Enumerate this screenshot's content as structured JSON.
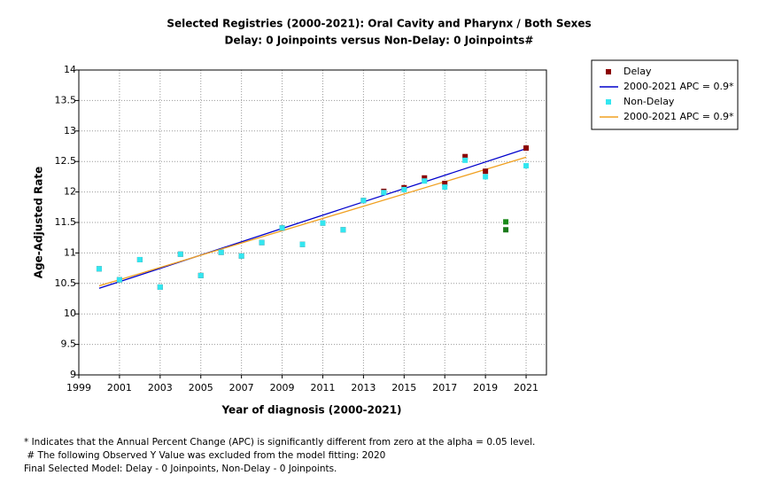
{
  "chart_data": {
    "type": "scatter",
    "title": [
      "Selected Registries (2000-2021): Oral Cavity and Pharynx / Both Sexes",
      "Delay: 0 Joinpoints  versus  Non-Delay: 0 Joinpoints#"
    ],
    "x_label": "Year of diagnosis (2000-2021)",
    "y_label": "Age-Adjusted Rate",
    "xlim": [
      1999,
      2022
    ],
    "xticks": [
      1999,
      2001,
      2003,
      2005,
      2007,
      2009,
      2011,
      2013,
      2015,
      2017,
      2019,
      2021
    ],
    "ylim": [
      9,
      14
    ],
    "yticks": [
      9,
      9.5,
      10,
      10.5,
      11,
      11.5,
      12,
      12.5,
      13,
      13.5,
      14
    ],
    "grid": true,
    "legend_position": "right",
    "series": [
      {
        "name": "Delay",
        "mode": "markers",
        "color": "#8b0000",
        "x": [
          2000,
          2001,
          2002,
          2003,
          2004,
          2005,
          2006,
          2007,
          2008,
          2009,
          2010,
          2011,
          2012,
          2013,
          2014,
          2015,
          2016,
          2017,
          2018,
          2019,
          2020,
          2021
        ],
        "values": [
          10.74,
          10.56,
          10.89,
          10.44,
          10.98,
          10.63,
          11.01,
          10.95,
          11.17,
          11.41,
          11.14,
          11.49,
          11.38,
          11.86,
          12.01,
          12.07,
          12.23,
          12.14,
          12.58,
          12.34,
          11.51,
          12.72
        ],
        "point_colors": [
          "#8b0000",
          "#8b0000",
          "#8b0000",
          "#8b0000",
          "#8b0000",
          "#8b0000",
          "#8b0000",
          "#8b0000",
          "#8b0000",
          "#8b0000",
          "#8b0000",
          "#8b0000",
          "#8b0000",
          "#8b0000",
          "#8b0000",
          "#8b0000",
          "#8b0000",
          "#8b0000",
          "#8b0000",
          "#8b0000",
          "#1a8a1a",
          "#8b0000"
        ]
      },
      {
        "name": "2000-2021 APC  =  0.9*",
        "mode": "line",
        "color": "#0000cc",
        "x": [
          2000,
          2021
        ],
        "values": [
          10.42,
          12.71
        ]
      },
      {
        "name": "Non-Delay",
        "mode": "markers",
        "color": "#33e6f0",
        "x": [
          2000,
          2001,
          2002,
          2003,
          2004,
          2005,
          2006,
          2007,
          2008,
          2009,
          2010,
          2011,
          2012,
          2013,
          2014,
          2015,
          2016,
          2017,
          2018,
          2019,
          2020,
          2021
        ],
        "values": [
          10.74,
          10.56,
          10.89,
          10.44,
          10.98,
          10.63,
          11.01,
          10.95,
          11.17,
          11.41,
          11.14,
          11.49,
          11.38,
          11.86,
          11.99,
          12.04,
          12.18,
          12.08,
          12.52,
          12.25,
          11.38,
          12.43
        ],
        "point_colors": [
          "#33e6f0",
          "#33e6f0",
          "#33e6f0",
          "#33e6f0",
          "#33e6f0",
          "#33e6f0",
          "#33e6f0",
          "#33e6f0",
          "#33e6f0",
          "#33e6f0",
          "#33e6f0",
          "#33e6f0",
          "#33e6f0",
          "#33e6f0",
          "#33e6f0",
          "#33e6f0",
          "#33e6f0",
          "#33e6f0",
          "#33e6f0",
          "#33e6f0",
          "#1a7a1a",
          "#33e6f0"
        ]
      },
      {
        "name": "2000-2021 APC  =  0.9*",
        "mode": "line",
        "color": "#f0a020",
        "x": [
          2000,
          2021
        ],
        "values": [
          10.46,
          12.57
        ]
      }
    ],
    "footnotes": [
      "* Indicates that the Annual Percent Change (APC) is significantly different from zero at the alpha = 0.05 level.",
      " # The following Observed Y Value was excluded from the model fitting: 2020",
      "Final Selected Model: Delay - 0 Joinpoints, Non-Delay - 0 Joinpoints."
    ]
  }
}
